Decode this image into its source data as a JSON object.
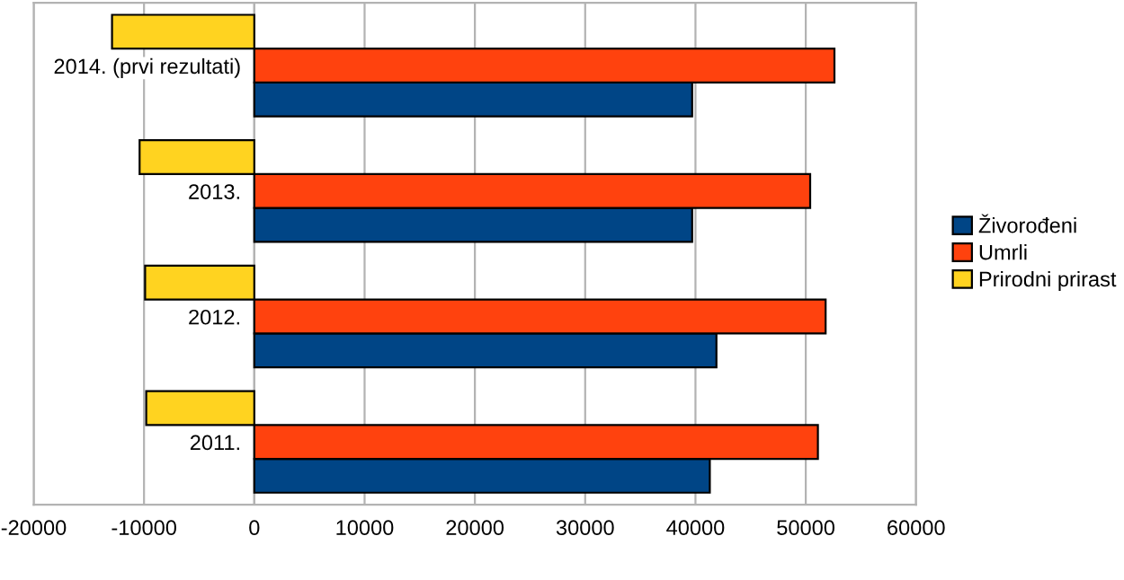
{
  "chart_data": {
    "type": "bar",
    "orientation": "horizontal",
    "categories": [
      "2014. (prvi rezultati)",
      "2013.",
      "2012.",
      "2011."
    ],
    "series": [
      {
        "name": "Živorođeni",
        "color": "#004586",
        "values": [
          39700,
          39700,
          41900,
          41300
        ]
      },
      {
        "name": "Umrli",
        "color": "#ff420e",
        "values": [
          52600,
          50400,
          51800,
          51100
        ]
      },
      {
        "name": "Prirodni prirast",
        "color": "#ffd320",
        "values": [
          -12900,
          -10400,
          -9900,
          -9800
        ]
      }
    ],
    "xlim": [
      -20000,
      60000
    ],
    "xticks": [
      -20000,
      -10000,
      0,
      10000,
      20000,
      30000,
      40000,
      50000,
      60000
    ],
    "grid": "x",
    "legend": "right"
  }
}
